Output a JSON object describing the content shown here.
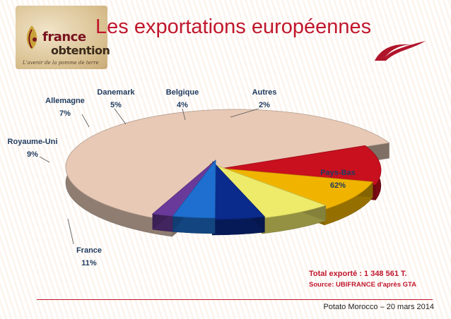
{
  "slide": {
    "title": "Les exportations européennes",
    "logo": {
      "brand_line1": "france",
      "brand_line2": "obtention",
      "tagline": "L'avenir de la pomme de terre"
    },
    "total_text": "Total exporté : 1 348 561 T.",
    "source_text": "Source:  UBIFRANCE d'après GTA",
    "footer": "Potato Morocco – 20 mars 2014"
  },
  "colors": {
    "title": "#c0172d",
    "label": "#1f3a5e"
  },
  "chart_data": {
    "type": "pie",
    "style": "3d-exploded",
    "slices": [
      {
        "name": "Pays-Bas",
        "value": 62,
        "label": "62%",
        "color": "#e7c9b6"
      },
      {
        "name": "Autres",
        "value": 2,
        "label": "2%",
        "color": "#6a3a9a"
      },
      {
        "name": "Belgique",
        "value": 4,
        "label": "4%",
        "color": "#1e6fd0"
      },
      {
        "name": "Danemark",
        "value": 5,
        "label": "5%",
        "color": "#0a2a8c"
      },
      {
        "name": "Allemagne",
        "value": 7,
        "label": "7%",
        "color": "#eeea6a"
      },
      {
        "name": "Royaume-Uni",
        "value": 9,
        "label": "9%",
        "color": "#f0b400"
      },
      {
        "name": "France",
        "value": 11,
        "label": "11%",
        "color": "#c8101e"
      }
    ]
  }
}
